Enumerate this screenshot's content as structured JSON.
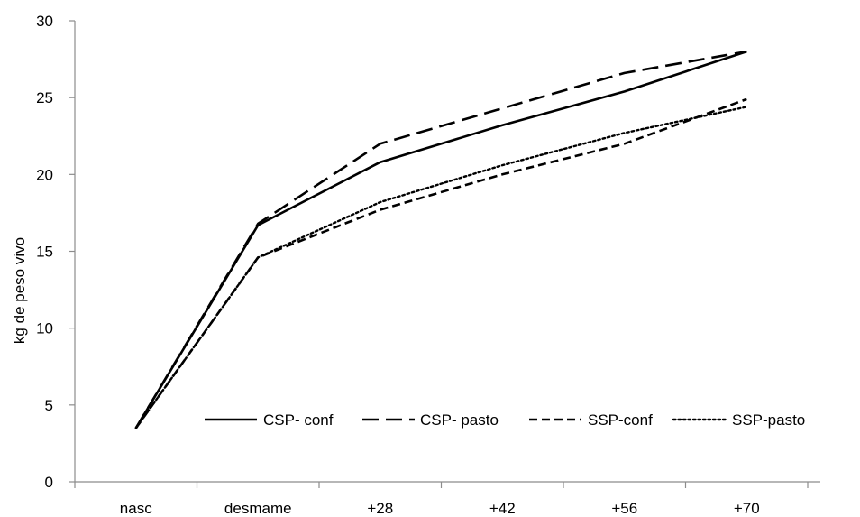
{
  "chart_data": {
    "type": "line",
    "ylabel": "kg de peso vivo",
    "xlabel": "",
    "categories": [
      "nasc",
      "desmame",
      "+28",
      "+42",
      "+56",
      "+70"
    ],
    "ylim": [
      0,
      30
    ],
    "yticks": [
      0,
      5,
      10,
      15,
      20,
      25,
      30
    ],
    "grid": false,
    "legend_position": "bottom-inside",
    "series": [
      {
        "name": "CSP- conf",
        "values": [
          3.5,
          16.7,
          20.8,
          23.2,
          25.4,
          28.0
        ],
        "dash": "solid",
        "color": "#000000"
      },
      {
        "name": "CSP- pasto",
        "values": [
          3.5,
          16.8,
          22.0,
          24.3,
          26.6,
          28.0
        ],
        "dash": "long-dash",
        "color": "#000000"
      },
      {
        "name": "SSP-conf",
        "values": [
          3.5,
          14.6,
          17.7,
          20.0,
          22.0,
          24.9
        ],
        "dash": "dash",
        "color": "#000000"
      },
      {
        "name": "SSP-pasto",
        "values": [
          3.5,
          14.6,
          18.2,
          20.6,
          22.7,
          24.4
        ],
        "dash": "dot",
        "color": "#000000"
      }
    ]
  }
}
